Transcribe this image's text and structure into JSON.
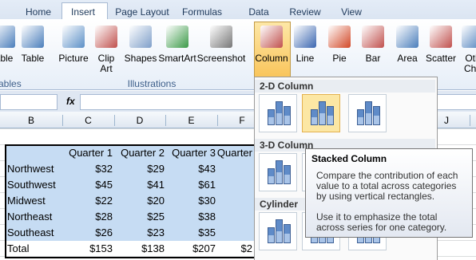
{
  "tabs": [
    "Home",
    "Insert",
    "Page Layout",
    "Formulas",
    "Data",
    "Review",
    "View"
  ],
  "ribbon": {
    "buttons": [
      "able",
      "Table",
      "Picture",
      "Clip\nArt",
      "Shapes",
      "SmartArt",
      "Screenshot",
      "Column",
      "Line",
      "Pie",
      "Bar",
      "Area",
      "Scatter",
      "Oth\nCha"
    ],
    "groups": [
      "ables",
      "Illustrations"
    ]
  },
  "formula_bar": {
    "fx": "fx"
  },
  "columns": [
    "B",
    "C",
    "D",
    "E",
    "F",
    "J"
  ],
  "table": {
    "header": [
      "Quarter 1",
      "Quarter 2",
      "Quarter 3",
      "Quarter"
    ],
    "rows": [
      [
        "Northwest",
        "$32",
        "$29",
        "$43"
      ],
      [
        "Southwest",
        "$45",
        "$41",
        "$61"
      ],
      [
        "Midwest",
        "$22",
        "$20",
        "$30"
      ],
      [
        "Northeast",
        "$28",
        "$25",
        "$38"
      ],
      [
        "Southeast",
        "$26",
        "$23",
        "$35"
      ],
      [
        "Total",
        "$153",
        "$138",
        "$207",
        "$2"
      ]
    ]
  },
  "menu": {
    "sections": [
      "2-D Column",
      "3-D Column",
      "Cylinder"
    ]
  },
  "tooltip": {
    "title": "Stacked Column",
    "lines": [
      "Compare the contribution of each value to a total across categories by using vertical rectangles.",
      "Use it to emphasize the total across series for one category."
    ]
  }
}
